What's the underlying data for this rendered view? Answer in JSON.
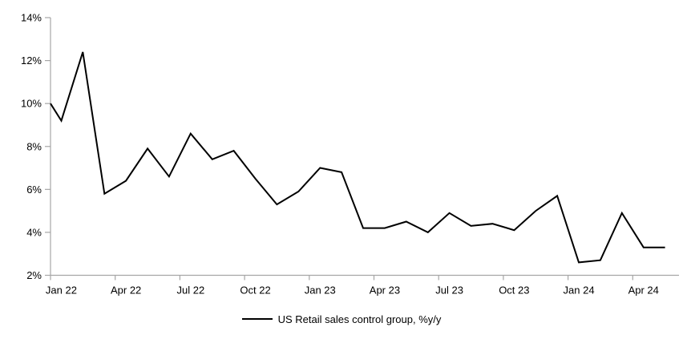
{
  "figure": {
    "background_color": "#ffffff",
    "axis_color": "#a6a6a6",
    "text_color": "#000000"
  },
  "chart_data": {
    "type": "line",
    "title": "",
    "xlabel": "",
    "ylabel": "",
    "legend": "US Retail sales control group, %y/y",
    "legend_position": "bottom-center",
    "grid": false,
    "line_color": "#000000",
    "ylim": [
      2,
      14
    ],
    "y_ticks": [
      14,
      12,
      10,
      8,
      6,
      4,
      2
    ],
    "y_tick_labels": [
      "14%",
      "12%",
      "10%",
      "8%",
      "6%",
      "4%",
      "2%"
    ],
    "x": [
      "Dec 21",
      "Jan 22",
      "Feb 22",
      "Mar 22",
      "Apr 22",
      "May 22",
      "Jun 22",
      "Jul 22",
      "Aug 22",
      "Sep 22",
      "Oct 22",
      "Nov 22",
      "Dec 22",
      "Jan 23",
      "Feb 23",
      "Mar 23",
      "Apr 23",
      "May 23",
      "Jun 23",
      "Jul 23",
      "Aug 23",
      "Sep 23",
      "Oct 23",
      "Nov 23",
      "Dec 23",
      "Jan 24",
      "Feb 24",
      "Mar 24",
      "Apr 24",
      "May 24"
    ],
    "values": [
      10.0,
      9.2,
      12.4,
      5.8,
      6.4,
      7.9,
      6.6,
      8.6,
      7.4,
      7.8,
      6.5,
      5.3,
      5.9,
      7.0,
      6.8,
      4.2,
      4.2,
      4.5,
      4.0,
      4.9,
      4.3,
      4.4,
      4.1,
      5.0,
      5.7,
      2.6,
      2.7,
      4.9,
      3.3,
      3.3
    ],
    "x_tick_labels": [
      {
        "index": 1,
        "label": "Jan 22"
      },
      {
        "index": 4,
        "label": "Apr 22"
      },
      {
        "index": 7,
        "label": "Jul 22"
      },
      {
        "index": 10,
        "label": "Oct 22"
      },
      {
        "index": 13,
        "label": "Jan 23"
      },
      {
        "index": 16,
        "label": "Apr 23"
      },
      {
        "index": 19,
        "label": "Jul 23"
      },
      {
        "index": 22,
        "label": "Oct 23"
      },
      {
        "index": 25,
        "label": "Jan 24"
      },
      {
        "index": 28,
        "label": "Apr 24"
      }
    ]
  }
}
